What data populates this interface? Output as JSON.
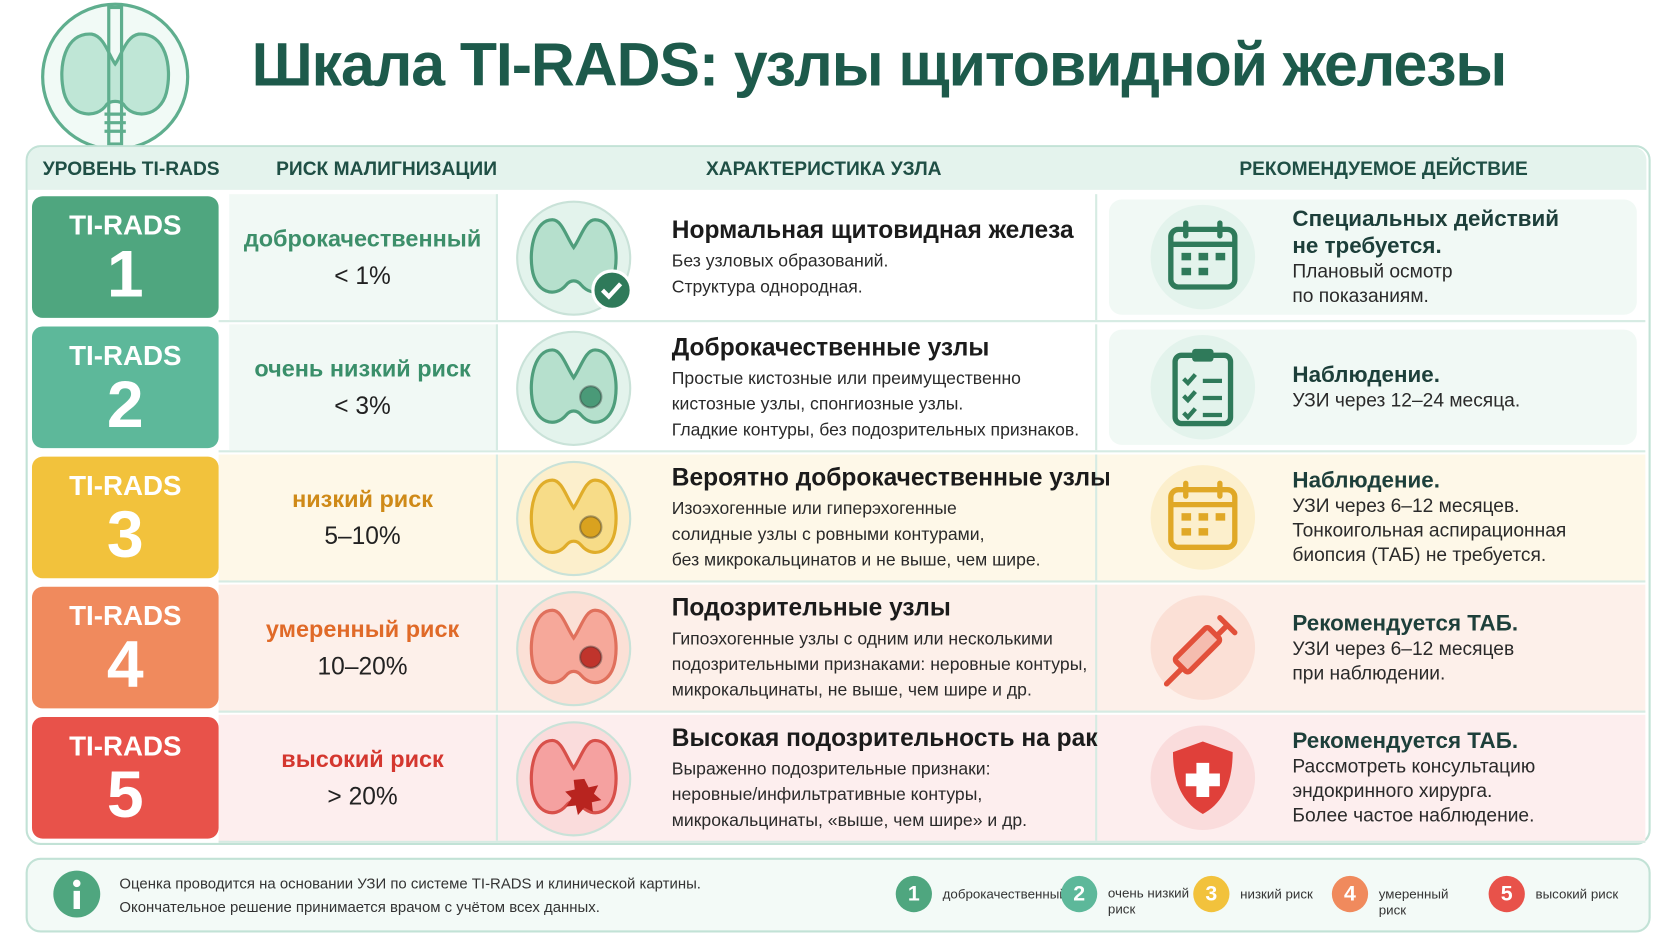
{
  "title": "Шкала TI-RADS: узлы щитовидной железы",
  "headers": [
    "УРОВЕНЬ TI-RADS",
    "РИСК МАЛИГНИЗАЦИИ",
    "ХАРАКТЕРИСТИКА УЗЛА",
    "РЕКОМЕНДУЕМОЕ ДЕЙСТВИЕ"
  ],
  "rows": [
    {
      "badge": "TI-RADS",
      "level": "1",
      "risk": "доброкачественный",
      "risk_value": "< 1%",
      "feature_title": "Нормальная щитовидная железа",
      "feature_lines": [
        "Без узловых образований.",
        "Структура однородная."
      ],
      "action_title": [
        "Специальных действий",
        "не требуется."
      ],
      "action_lines": [
        "Плановый осмотр",
        "по показаниям."
      ]
    },
    {
      "badge": "TI-RADS",
      "level": "2",
      "risk": "очень низкий риск",
      "risk_value": "< 3%",
      "feature_title": "Доброкачественные узлы",
      "feature_lines": [
        "Простые кистозные или преимущественно",
        "кистозные узлы, спонгиозные узлы.",
        "Гладкие контуры, без подозрительных признаков."
      ],
      "action_title": [
        "Наблюдение."
      ],
      "action_lines": [
        "УЗИ через 12–24 месяца."
      ]
    },
    {
      "badge": "TI-RADS",
      "level": "3",
      "risk": "низкий риск",
      "risk_value": "5–10%",
      "feature_title": "Вероятно доброкачественные узлы",
      "feature_lines": [
        "Изоэхогенные или гиперэхогенные",
        "солидные узлы с ровными контурами,",
        "без микрокальцинатов и не выше, чем шире."
      ],
      "action_title": [
        "Наблюдение."
      ],
      "action_lines": [
        "УЗИ через 6–12 месяцев.",
        "Тонкоигольная аспирационная",
        "биопсия (ТАБ) не требуется."
      ]
    },
    {
      "badge": "TI-RADS",
      "level": "4",
      "risk": "умеренный риск",
      "risk_value": "10–20%",
      "feature_title": "Подозрительные узлы",
      "feature_lines": [
        "Гипоэхогенные узлы с одним или несколькими",
        "подозрительными признаками: неровные контуры,",
        "микрокальцинаты, не выше, чем шире и др."
      ],
      "action_title": [
        "Рекомендуется ТАБ."
      ],
      "action_lines": [
        "УЗИ через 6–12 месяцев",
        "при наблюдении."
      ]
    },
    {
      "badge": "TI-RADS",
      "level": "5",
      "risk": "высокий риск",
      "risk_value": "> 20%",
      "feature_title": "Высокая подозрительность на рак",
      "feature_lines": [
        "Выраженно подозрительные признаки:",
        "неровные/инфильтративные контуры,",
        "микрокальцинаты, «выше, чем шире» и др."
      ],
      "action_title": [
        "Рекомендуется ТАБ."
      ],
      "action_lines": [
        "Рассмотреть консультацию",
        "эндокринного хирурга.",
        "Более частое наблюдение."
      ]
    }
  ],
  "footer": {
    "lines": [
      "Оценка проводится на основании УЗИ по системе TI-RADS и клинической картины.",
      "Окончательное решение принимается врачом с учётом всех данных."
    ],
    "legend": [
      {
        "number": "1",
        "label": "доброкачественный"
      },
      {
        "number": "2",
        "label": "очень низкий риск"
      },
      {
        "number": "3",
        "label": "низкий риск"
      },
      {
        "number": "4",
        "label": "умеренный риск"
      },
      {
        "number": "5",
        "label": "высокий риск"
      }
    ]
  }
}
